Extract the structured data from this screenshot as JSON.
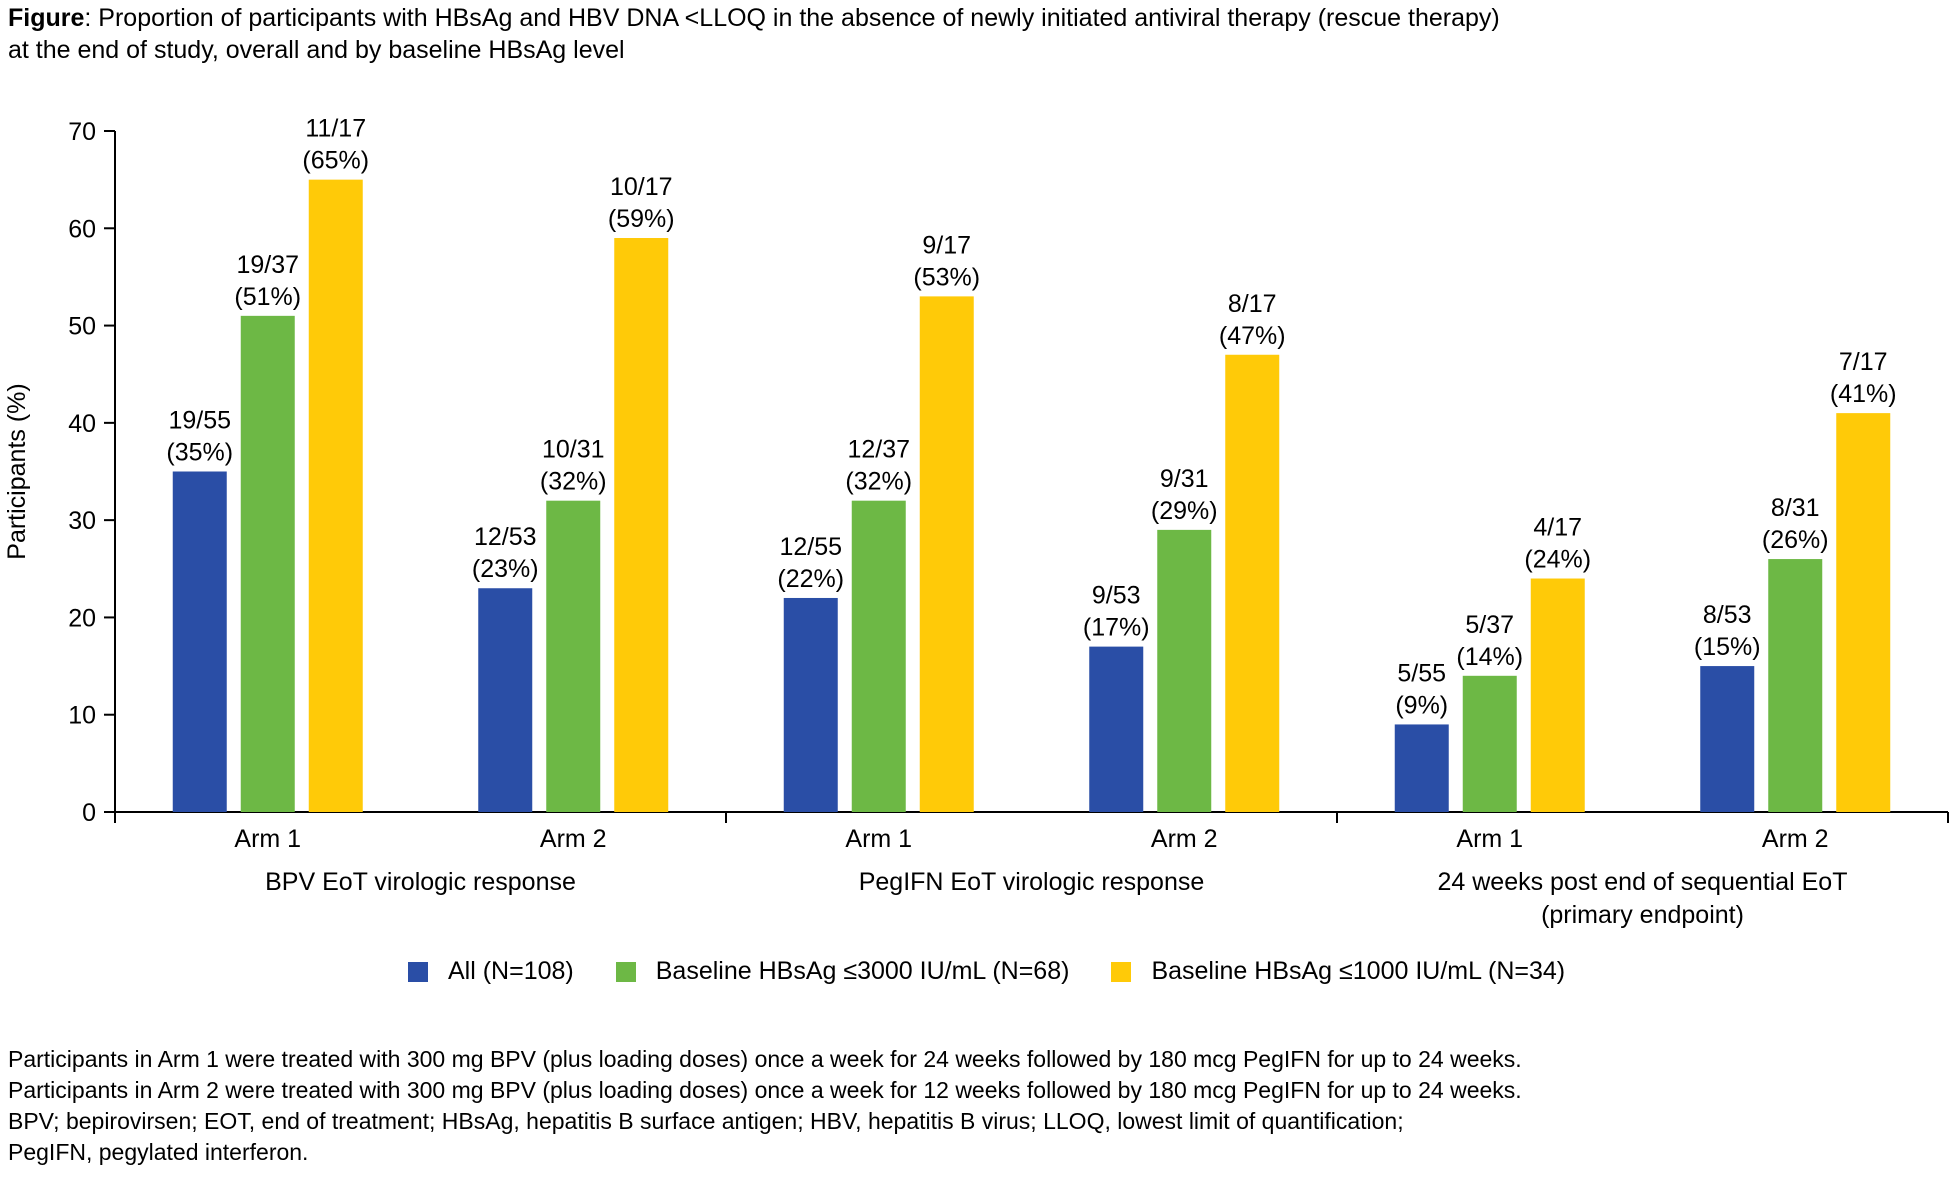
{
  "figure": {
    "caption_label": "Figure",
    "caption_text_line1": ": Proportion of participants with HBsAg and HBV DNA <LLOQ in the absence of newly initiated antiviral therapy (rescue therapy)",
    "caption_text_line2": "at the end of study, overall and by baseline HBsAg level"
  },
  "colors": {
    "all": "#2A4EA6",
    "le3000": "#6DB845",
    "le1000": "#FFCA08"
  },
  "chart_data": {
    "type": "bar",
    "title": "Proportion of participants with HBsAg and HBV DNA <LLOQ in the absence of newly initiated antiviral therapy (rescue therapy) at the end of study, overall and by baseline HBsAg level",
    "xlabel": "",
    "ylabel": "Participants (%)",
    "ylim": [
      0,
      70
    ],
    "yticks": [
      0,
      10,
      20,
      30,
      40,
      50,
      60,
      70
    ],
    "groups": [
      {
        "label_lines": [
          "BPV EoT virologic response"
        ],
        "categories": [
          "Arm 1",
          "Arm 2"
        ]
      },
      {
        "label_lines": [
          "PegIFN EoT virologic response"
        ],
        "categories": [
          "Arm 1",
          "Arm 2"
        ]
      },
      {
        "label_lines": [
          "24 weeks post end of sequential EoT",
          "(primary endpoint)"
        ],
        "categories": [
          "Arm 1",
          "Arm 2"
        ]
      }
    ],
    "categories": [
      "Arm 1",
      "Arm 2",
      "Arm 1",
      "Arm 2",
      "Arm 1",
      "Arm 2"
    ],
    "series": [
      {
        "name": "All (N=108)",
        "color": "#2A4EA6",
        "values": [
          35,
          23,
          22,
          17,
          9,
          15
        ],
        "labels": [
          [
            "19/55",
            "(35%)"
          ],
          [
            "12/53",
            "(23%)"
          ],
          [
            "12/55",
            "(22%)"
          ],
          [
            "9/53",
            "(17%)"
          ],
          [
            "5/55",
            "(9%)"
          ],
          [
            "8/53",
            "(15%)"
          ]
        ]
      },
      {
        "name": "Baseline HBsAg ≤3000 IU/mL (N=68)",
        "color": "#6DB845",
        "values": [
          51,
          32,
          32,
          29,
          14,
          26
        ],
        "labels": [
          [
            "19/37",
            "(51%)"
          ],
          [
            "10/31",
            "(32%)"
          ],
          [
            "12/37",
            "(32%)"
          ],
          [
            "9/31",
            "(29%)"
          ],
          [
            "5/37",
            "(14%)"
          ],
          [
            "8/31",
            "(26%)"
          ]
        ]
      },
      {
        "name": "Baseline HBsAg ≤1000 IU/mL (N=34)",
        "color": "#FFCA08",
        "values": [
          65,
          59,
          53,
          47,
          24,
          41
        ],
        "labels": [
          [
            "11/17",
            "(65%)"
          ],
          [
            "10/17",
            "(59%)"
          ],
          [
            "9/17",
            "(53%)"
          ],
          [
            "8/17",
            "(47%)"
          ],
          [
            "4/17",
            "(24%)"
          ],
          [
            "7/17",
            "(41%)"
          ]
        ]
      }
    ],
    "legend": "bottom"
  },
  "legend": {
    "all": "All (N=108)",
    "le3000": "Baseline HBsAg ≤3000 IU/mL (N=68)",
    "le1000": "Baseline HBsAg ≤1000 IU/mL (N=34)"
  },
  "footnotes": {
    "line1": "Participants in Arm 1 were treated with 300 mg BPV (plus loading doses) once a week for 24 weeks followed by 180 mcg PegIFN for up to 24 weeks.",
    "line2": "Participants in Arm 2 were treated with 300 mg BPV (plus loading doses) once a week for 12 weeks followed by 180 mcg PegIFN for up to 24 weeks.",
    "line3": "BPV; bepirovirsen; EOT, end of treatment; HBsAg, hepatitis B surface antigen; HBV, hepatitis B virus; LLOQ, lowest limit of quantification;",
    "line4": "PegIFN, pegylated interferon."
  }
}
